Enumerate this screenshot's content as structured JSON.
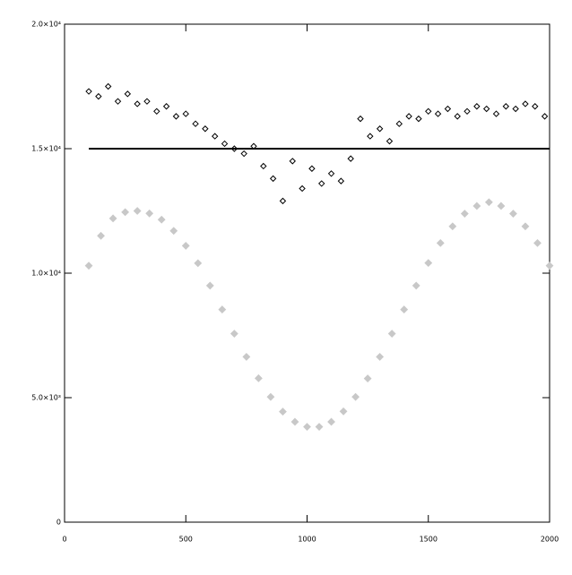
{
  "chart_data": {
    "type": "scatter",
    "xlim": [
      0,
      2000
    ],
    "xticks": [
      0,
      500,
      1000,
      1500,
      2000
    ],
    "ylim": [
      0,
      20000
    ],
    "yticks": [
      0,
      {
        "value": 5000,
        "label": "5.0×10³"
      },
      {
        "value": 10000,
        "label": "1.0×10⁴"
      },
      {
        "value": 15000,
        "label": "1.5×10⁴"
      },
      {
        "value": 20000,
        "label": "2.0×10⁴"
      }
    ],
    "series": [
      {
        "mode": "markers",
        "color": "#000000",
        "x": [
          100,
          140,
          180,
          220,
          260,
          300,
          340,
          380,
          420,
          460,
          500,
          540,
          580,
          620,
          660,
          700,
          740,
          780,
          820,
          860,
          900,
          940,
          980,
          1020,
          1060,
          1100,
          1140,
          1180,
          1220,
          1260,
          1300,
          1340,
          1380,
          1420,
          1460,
          1500,
          1540,
          1580,
          1620,
          1660,
          1700,
          1740,
          1780,
          1820,
          1860,
          1900,
          1940,
          1980
        ],
        "values": [
          17300,
          17100,
          17500,
          16900,
          17200,
          16800,
          16900,
          16500,
          16700,
          16300,
          16400,
          16000,
          15800,
          15500,
          15200,
          15000,
          14800,
          15100,
          14300,
          13800,
          12900,
          14500,
          13400,
          14200,
          13600,
          14000,
          13700,
          14600,
          16200,
          15500,
          15800,
          15300,
          16000,
          16300,
          16200,
          16500,
          16400,
          16600,
          16300,
          16500,
          16700,
          16600,
          16400,
          16700,
          16600,
          16800,
          16700,
          16300
        ]
      },
      {
        "mode": "line",
        "color": "#000000",
        "x": [
          100,
          2000
        ],
        "values": [
          15000,
          15000
        ]
      },
      {
        "mode": "markers",
        "color": "#c8c8c8",
        "x": [
          100,
          150,
          200,
          250,
          300,
          350,
          400,
          450,
          500,
          550,
          600,
          650,
          700,
          750,
          800,
          850,
          900,
          950,
          1000,
          1050,
          1100,
          1150,
          1200,
          1250,
          1300,
          1350,
          1400,
          1450,
          1500,
          1550,
          1600,
          1650,
          1700,
          1750,
          1800,
          1850,
          1900,
          1950,
          2000
        ],
        "values": [
          10300,
          11500,
          12200,
          12450,
          12500,
          12400,
          12150,
          11700,
          11100,
          10400,
          9500,
          8540,
          7570,
          6640,
          5780,
          5030,
          4440,
          4030,
          3830,
          3830,
          4030,
          4450,
          5030,
          5770,
          6640,
          7570,
          8540,
          9500,
          10410,
          11210,
          11880,
          12390,
          12700,
          12850,
          12700,
          12390,
          11880,
          11210,
          10300
        ]
      }
    ]
  }
}
